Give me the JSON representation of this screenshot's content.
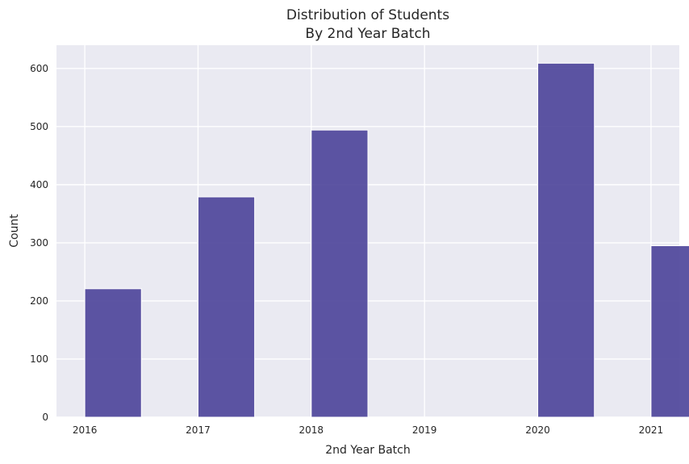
{
  "chart_data": {
    "type": "bar",
    "title_lines": [
      "Distribution of Students",
      "By 2nd Year Batch"
    ],
    "xlabel": "2nd Year Batch",
    "ylabel": "Count",
    "xlim": [
      2015.75,
      2021.25
    ],
    "ylim": [
      0,
      640
    ],
    "x_ticks": [
      2016,
      2017,
      2018,
      2019,
      2020,
      2021
    ],
    "y_ticks": [
      0,
      100,
      200,
      300,
      400,
      500,
      600
    ],
    "bar_width": 0.5,
    "bars": [
      {
        "x_start": 2016.0,
        "value": 221
      },
      {
        "x_start": 2017.0,
        "value": 379
      },
      {
        "x_start": 2018.0,
        "value": 494
      },
      {
        "x_start": 2020.0,
        "value": 609
      },
      {
        "x_start": 2021.0,
        "value": 295
      }
    ],
    "bar_color": "#4b4399",
    "background": "#eaeaf2",
    "grid": true
  }
}
